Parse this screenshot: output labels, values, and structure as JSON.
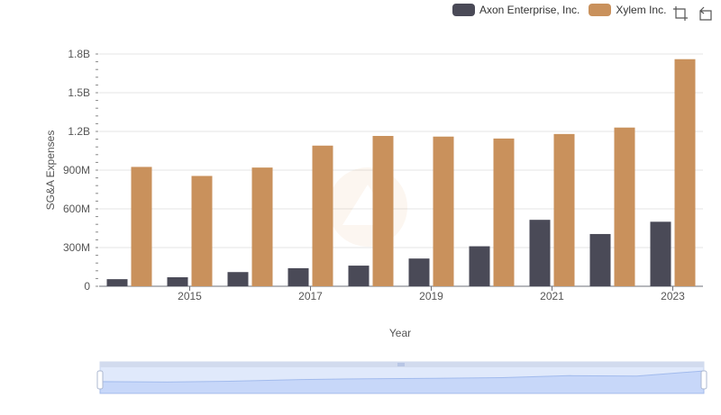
{
  "legend": {
    "items": [
      {
        "label": "Axon Enterprise, Inc.",
        "color": "#4a4a57"
      },
      {
        "label": "Xylem Inc.",
        "color": "#c9915c"
      }
    ]
  },
  "toolbox": {
    "icons": [
      "zoom-icon",
      "restore-icon"
    ]
  },
  "chart_data": {
    "type": "bar",
    "xlabel": "Year",
    "ylabel": "SG&A Expenses",
    "categories": [
      "2014",
      "2015",
      "2016",
      "2017",
      "2018",
      "2019",
      "2020",
      "2021",
      "2022",
      "2023"
    ],
    "x_tick_labels": [
      "2015",
      "2017",
      "2019",
      "2021",
      "2023"
    ],
    "y_ticks": [
      "0",
      "300M",
      "600M",
      "900M",
      "1.2B",
      "1.5B",
      "1.8B"
    ],
    "ylim": [
      0,
      1800000000
    ],
    "grid": true,
    "legend_position": "top-right",
    "series": [
      {
        "name": "Axon Enterprise, Inc.",
        "color": "#4a4a57",
        "values": [
          55000000,
          70000000,
          110000000,
          140000000,
          160000000,
          215000000,
          310000000,
          515000000,
          405000000,
          500000000
        ]
      },
      {
        "name": "Xylem Inc.",
        "color": "#c9915c",
        "values": [
          925000000,
          855000000,
          920000000,
          1090000000,
          1165000000,
          1160000000,
          1145000000,
          1180000000,
          1230000000,
          1760000000
        ]
      }
    ],
    "data_zoom": {
      "start": 0,
      "end": 100
    }
  }
}
